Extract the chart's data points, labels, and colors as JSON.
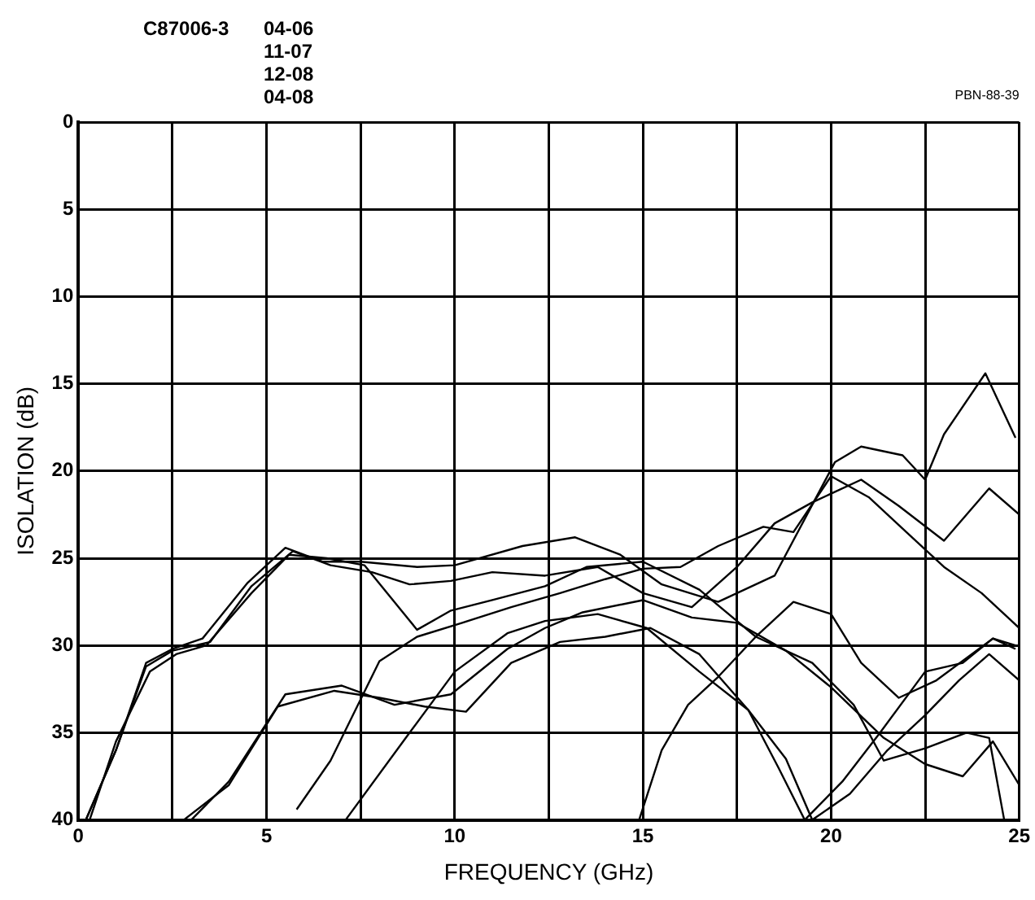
{
  "chart_data": {
    "type": "line",
    "xlabel": "FREQUENCY (GHz)",
    "ylabel": "ISOLATION (dB)",
    "annotations": [
      "C87006-3",
      "04-06",
      "11-07",
      "12-08",
      "04-08",
      "PBN-88-39"
    ],
    "xlim": [
      0,
      25
    ],
    "ylim": [
      40,
      0
    ],
    "xticks": [
      0,
      {
        "value": 2.5,
        "label": null
      },
      5,
      {
        "value": 7.5,
        "label": null
      },
      10,
      {
        "value": 12.5,
        "label": null
      },
      15,
      {
        "value": 17.5,
        "label": null
      },
      20,
      {
        "value": 22.5,
        "label": null
      },
      25
    ],
    "yticks": [
      0,
      5,
      10,
      15,
      20,
      25,
      30,
      35,
      40
    ],
    "grid": true,
    "legend": false,
    "marker": "none",
    "line_style": "solid",
    "series": [
      {
        "color": "#000000",
        "x": [
          0.2,
          1,
          1.8,
          2.5,
          3.3,
          4.5,
          5.5,
          6.5,
          7.5,
          9,
          10,
          11.8,
          13.2,
          14.4,
          15.5,
          17,
          18.5,
          20.1,
          20.8,
          21.9,
          22.5,
          23,
          24.1,
          24.9
        ],
        "values": [
          40,
          36,
          31,
          30.2,
          29.6,
          26.4,
          24.4,
          25.2,
          25.2,
          25.5,
          25.4,
          24.3,
          23.8,
          24.8,
          26.5,
          27.5,
          26,
          19.5,
          18.6,
          19.1,
          20.5,
          17.9,
          14.4,
          18.1
        ]
      },
      {
        "color": "#000000",
        "x": [
          0.3,
          1,
          1.9,
          2.6,
          3.4,
          4.6,
          5.6,
          6.6,
          7.6,
          9,
          9.9,
          11,
          12.4,
          13.5,
          15,
          16.5,
          18,
          19.5,
          20.6,
          21.4,
          22.5,
          23.6,
          24.2,
          24.6
        ],
        "values": [
          40,
          35.5,
          31.5,
          30.5,
          30,
          27,
          24.8,
          25,
          25.4,
          29.1,
          28,
          27.4,
          26.6,
          25.5,
          25.2,
          26.8,
          29.5,
          31,
          33.4,
          36.6,
          35.9,
          35,
          35.3,
          40
        ]
      },
      {
        "color": "#000000",
        "x": [
          0.2,
          1,
          1.8,
          2.5,
          3.5,
          4.6,
          5.7,
          6.7,
          7.8,
          8.8,
          9.9,
          11,
          12.4,
          13.8,
          15,
          16.3,
          17.5,
          18.5,
          19.5,
          20.8,
          21.8,
          23,
          24.2,
          25
        ],
        "values": [
          40,
          36,
          31.2,
          30.3,
          29.8,
          26.6,
          24.6,
          25.4,
          25.8,
          26.5,
          26.3,
          25.8,
          26,
          25.5,
          27,
          27.8,
          25.5,
          23,
          21.8,
          20.5,
          22,
          24,
          21,
          22.5
        ]
      },
      {
        "color": "#000000",
        "x": [
          3,
          4,
          5.5,
          7,
          8.4,
          9.9,
          11.4,
          12.4,
          13.4,
          15,
          16.3,
          17.5,
          18.8,
          20,
          21.4,
          22.5,
          23.5,
          24.3,
          25
        ],
        "values": [
          40,
          37.8,
          32.8,
          32.3,
          33.4,
          32.8,
          30.2,
          29,
          28.1,
          27.4,
          28.4,
          28.7,
          30.3,
          32.4,
          35.3,
          36.8,
          37.5,
          35.5,
          38
        ]
      },
      {
        "color": "#000000",
        "x": [
          2.8,
          4,
          5.3,
          6.8,
          8,
          9.2,
          10.3,
          11.5,
          12.8,
          14,
          15.2,
          16.5,
          17.8,
          18.8,
          19.5,
          20.5,
          21.5,
          22.5,
          23.4,
          24.2,
          25
        ],
        "values": [
          40,
          38,
          33.5,
          32.6,
          33,
          33.5,
          33.8,
          31,
          29.8,
          29.5,
          29,
          30.5,
          33.7,
          36.5,
          40,
          38.5,
          36,
          34,
          32,
          30.5,
          32
        ]
      },
      {
        "color": "#000000",
        "x": [
          7.1,
          8.7,
          10,
          11.4,
          12.4,
          13.8,
          15.1,
          16.5,
          17.8,
          18.6,
          19.3
        ],
        "values": [
          40,
          35.3,
          31.5,
          29.3,
          28.6,
          28.2,
          29,
          31.5,
          33.7,
          37,
          40
        ]
      },
      {
        "color": "#000000",
        "x": [
          5.8,
          6.7,
          8,
          9,
          10.2,
          11.5,
          12.8,
          14,
          15,
          16,
          17,
          18.2,
          19,
          20,
          21,
          22,
          23,
          24,
          25
        ],
        "values": [
          39.4,
          36.6,
          30.9,
          29.5,
          28.7,
          27.8,
          27,
          26.2,
          25.6,
          25.5,
          24.3,
          23.2,
          23.5,
          20.3,
          21.5,
          23.5,
          25.5,
          27,
          29
        ]
      },
      {
        "color": "#000000",
        "x": [
          14.9,
          15.5,
          16.2,
          17,
          18,
          19,
          20,
          20.8,
          21.8,
          22.8,
          24.3,
          24.9
        ],
        "values": [
          40,
          36,
          33.4,
          31.8,
          29.5,
          27.5,
          28.2,
          31,
          33,
          32,
          29.6,
          30.2
        ]
      },
      {
        "color": "#000000",
        "x": [
          19.3,
          20.3,
          21.3,
          22.5,
          23.5,
          24.3,
          24.9
        ],
        "values": [
          40,
          37.8,
          35,
          31.5,
          31,
          29.6,
          30
        ]
      }
    ]
  }
}
